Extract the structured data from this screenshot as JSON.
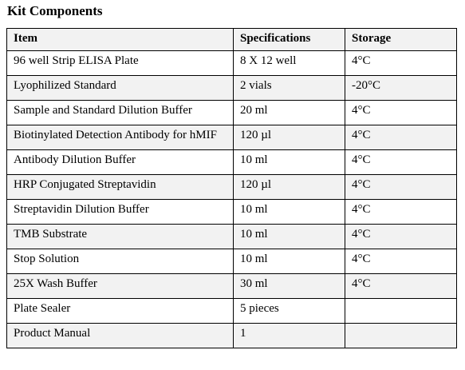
{
  "title": "Kit Components",
  "table": {
    "header": [
      "Item",
      "Specifications",
      "Storage"
    ],
    "rows": [
      [
        "96 well Strip ELISA Plate",
        "8 X 12 well",
        "4°C"
      ],
      [
        "Lyophilized Standard",
        "2 vials",
        "-20°C"
      ],
      [
        "Sample and Standard Dilution Buffer",
        "20 ml",
        "4°C"
      ],
      [
        "Biotinylated Detection Antibody  for hMIF",
        "120 µl",
        "4°C"
      ],
      [
        "Antibody Dilution Buffer",
        "10 ml",
        "4°C"
      ],
      [
        "HRP Conjugated Streptavidin",
        "120 µl",
        "4°C"
      ],
      [
        "Streptavidin Dilution Buffer",
        "10 ml",
        "4°C"
      ],
      [
        "TMB Substrate",
        "10 ml",
        "4°C"
      ],
      [
        "Stop Solution",
        "10 ml",
        "4°C"
      ],
      [
        "25X Wash Buffer",
        "30 ml",
        "4°C"
      ],
      [
        "Plate Sealer",
        "5 pieces"
      ],
      [
        "Product Manual",
        "1"
      ]
    ]
  }
}
